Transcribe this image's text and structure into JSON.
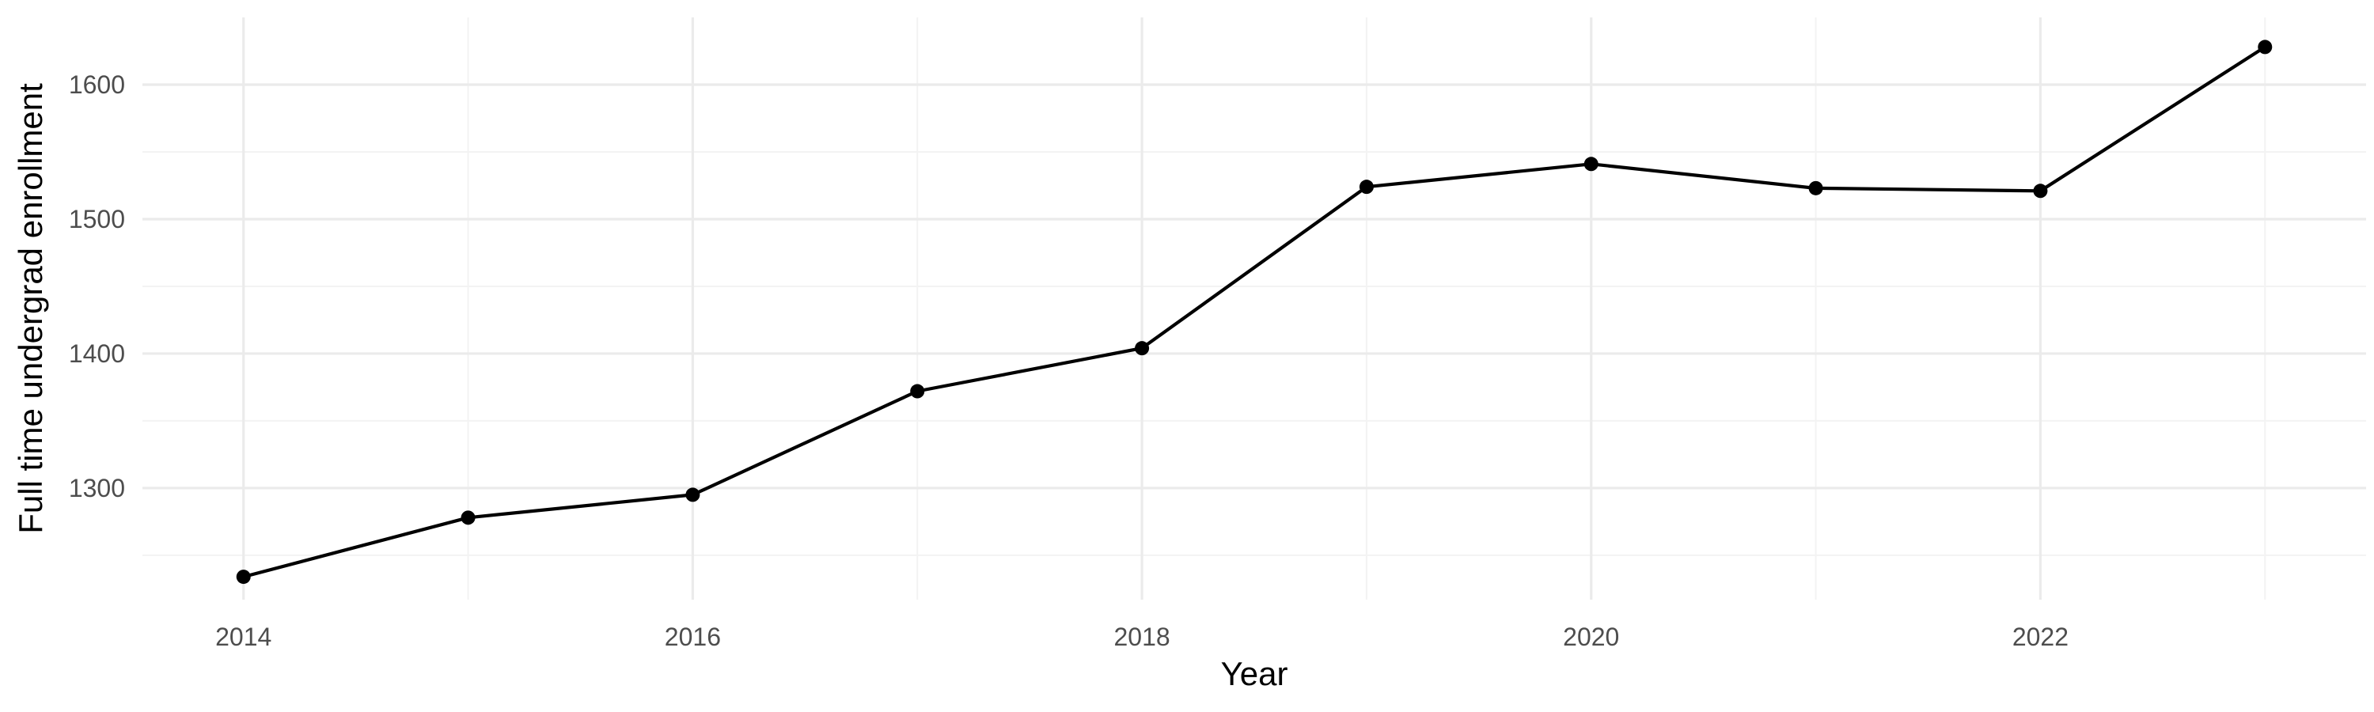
{
  "chart_data": {
    "type": "line",
    "title": "",
    "xlabel": "Year",
    "ylabel": "Full time undergrad enrollment",
    "x": [
      2014,
      2015,
      2016,
      2017,
      2018,
      2019,
      2020,
      2021,
      2022,
      2023
    ],
    "series": [
      {
        "values": [
          1234,
          1278,
          1295,
          1372,
          1404,
          1524,
          1541,
          1523,
          1521,
          1628
        ]
      }
    ],
    "xlim": [
      2013.55,
      2023.45
    ],
    "ylim": [
      1217,
      1650
    ],
    "x_ticks": [
      2014,
      2016,
      2018,
      2020,
      2022
    ],
    "x_minor_ticks": [
      2015,
      2017,
      2019,
      2021,
      2023
    ],
    "y_ticks": [
      1300,
      1400,
      1500,
      1600
    ],
    "y_minor_ticks": [
      1250,
      1350,
      1450,
      1550
    ],
    "grid": true,
    "legend": "none",
    "colors": {
      "line": "#000000",
      "point": "#000000",
      "grid_major": "#ebebeb",
      "grid_minor": "#f3f3f3",
      "tick_label": "#4d4d4d",
      "axis_title": "#000000",
      "background": "#ffffff"
    }
  }
}
